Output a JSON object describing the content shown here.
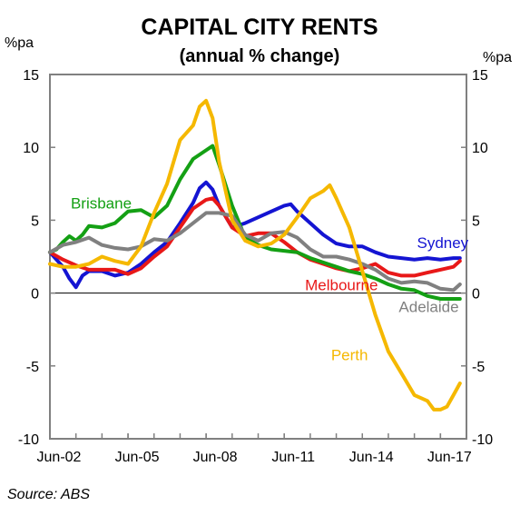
{
  "chart_data": {
    "type": "line",
    "title": "CAPITAL CITY RENTS",
    "subtitle": "(annual % change)",
    "ylabel_left": "%pa",
    "ylabel_right": "%pa",
    "source": "Source: ABS",
    "ylim": [
      -10,
      15
    ],
    "yticks": [
      "15",
      "10",
      "5",
      "0",
      "-5",
      "-10"
    ],
    "xlim": [
      2002.5,
      2018.5
    ],
    "xticks": [
      {
        "label": "Jun-02",
        "x": 2002.5
      },
      {
        "label": "Jun-05",
        "x": 2005.5
      },
      {
        "label": "Jun-08",
        "x": 2008.5
      },
      {
        "label": "Jun-11",
        "x": 2011.5
      },
      {
        "label": "Jun-14",
        "x": 2014.5
      },
      {
        "label": "Jun-17",
        "x": 2017.5
      }
    ],
    "grid": false,
    "series": [
      {
        "name": "Sydney",
        "color": "#1414d2",
        "label_pos": [
          2016.6,
          3.1
        ],
        "points": [
          [
            2002.5,
            2.8
          ],
          [
            2003.0,
            1.8
          ],
          [
            2003.25,
            1.0
          ],
          [
            2003.5,
            0.4
          ],
          [
            2003.75,
            1.2
          ],
          [
            2004.0,
            1.5
          ],
          [
            2004.5,
            1.5
          ],
          [
            2005.0,
            1.2
          ],
          [
            2005.5,
            1.4
          ],
          [
            2006.0,
            2.0
          ],
          [
            2006.5,
            2.8
          ],
          [
            2007.0,
            3.5
          ],
          [
            2007.5,
            4.8
          ],
          [
            2008.0,
            6.2
          ],
          [
            2008.25,
            7.2
          ],
          [
            2008.5,
            7.6
          ],
          [
            2008.75,
            7.1
          ],
          [
            2009.0,
            6.0
          ],
          [
            2009.5,
            4.5
          ],
          [
            2010.0,
            4.8
          ],
          [
            2010.5,
            5.2
          ],
          [
            2011.0,
            5.6
          ],
          [
            2011.5,
            6.0
          ],
          [
            2011.75,
            6.1
          ],
          [
            2012.0,
            5.6
          ],
          [
            2012.5,
            4.8
          ],
          [
            2013.0,
            4.0
          ],
          [
            2013.5,
            3.4
          ],
          [
            2014.0,
            3.2
          ],
          [
            2014.5,
            3.2
          ],
          [
            2015.0,
            2.8
          ],
          [
            2015.5,
            2.5
          ],
          [
            2016.0,
            2.4
          ],
          [
            2016.5,
            2.3
          ],
          [
            2017.0,
            2.4
          ],
          [
            2017.5,
            2.3
          ],
          [
            2018.0,
            2.4
          ],
          [
            2018.25,
            2.4
          ]
        ]
      },
      {
        "name": "Melbourne",
        "color": "#e81818",
        "label_pos": [
          2012.3,
          0.2
        ],
        "points": [
          [
            2002.5,
            2.8
          ],
          [
            2003.0,
            2.3
          ],
          [
            2003.5,
            1.9
          ],
          [
            2004.0,
            1.6
          ],
          [
            2004.5,
            1.6
          ],
          [
            2005.0,
            1.6
          ],
          [
            2005.5,
            1.3
          ],
          [
            2006.0,
            1.7
          ],
          [
            2006.5,
            2.5
          ],
          [
            2007.0,
            3.2
          ],
          [
            2007.5,
            4.5
          ],
          [
            2008.0,
            5.8
          ],
          [
            2008.5,
            6.4
          ],
          [
            2008.75,
            6.5
          ],
          [
            2009.0,
            6.0
          ],
          [
            2009.5,
            4.5
          ],
          [
            2010.0,
            3.9
          ],
          [
            2010.5,
            4.1
          ],
          [
            2011.0,
            4.1
          ],
          [
            2011.5,
            3.5
          ],
          [
            2012.0,
            2.8
          ],
          [
            2012.5,
            2.3
          ],
          [
            2013.0,
            2.0
          ],
          [
            2013.5,
            1.7
          ],
          [
            2014.0,
            1.5
          ],
          [
            2014.5,
            1.7
          ],
          [
            2015.0,
            2.0
          ],
          [
            2015.5,
            1.4
          ],
          [
            2016.0,
            1.2
          ],
          [
            2016.5,
            1.2
          ],
          [
            2017.0,
            1.4
          ],
          [
            2017.5,
            1.6
          ],
          [
            2018.0,
            1.8
          ],
          [
            2018.25,
            2.2
          ]
        ]
      },
      {
        "name": "Brisbane",
        "color": "#14a014",
        "label_pos": [
          2003.3,
          5.8
        ],
        "points": [
          [
            2002.5,
            2.8
          ],
          [
            2002.75,
            3.0
          ],
          [
            2003.0,
            3.5
          ],
          [
            2003.25,
            3.9
          ],
          [
            2003.5,
            3.6
          ],
          [
            2003.75,
            4.0
          ],
          [
            2004.0,
            4.6
          ],
          [
            2004.5,
            4.5
          ],
          [
            2005.0,
            4.8
          ],
          [
            2005.5,
            5.6
          ],
          [
            2006.0,
            5.7
          ],
          [
            2006.5,
            5.2
          ],
          [
            2007.0,
            6.0
          ],
          [
            2007.5,
            7.8
          ],
          [
            2008.0,
            9.2
          ],
          [
            2008.5,
            9.8
          ],
          [
            2008.75,
            10.1
          ],
          [
            2009.0,
            8.8
          ],
          [
            2009.5,
            6.0
          ],
          [
            2010.0,
            3.8
          ],
          [
            2010.5,
            3.3
          ],
          [
            2011.0,
            3.0
          ],
          [
            2011.5,
            2.9
          ],
          [
            2012.0,
            2.8
          ],
          [
            2012.5,
            2.4
          ],
          [
            2013.0,
            2.1
          ],
          [
            2013.5,
            1.8
          ],
          [
            2014.0,
            1.5
          ],
          [
            2014.5,
            1.3
          ],
          [
            2015.0,
            1.0
          ],
          [
            2015.5,
            0.6
          ],
          [
            2016.0,
            0.3
          ],
          [
            2016.5,
            0.2
          ],
          [
            2017.0,
            -0.2
          ],
          [
            2017.5,
            -0.4
          ],
          [
            2018.0,
            -0.4
          ],
          [
            2018.25,
            -0.4
          ]
        ]
      },
      {
        "name": "Adelaide",
        "color": "#808080",
        "label_pos": [
          2015.9,
          -1.3
        ],
        "points": [
          [
            2002.5,
            2.8
          ],
          [
            2003.0,
            3.3
          ],
          [
            2003.5,
            3.5
          ],
          [
            2004.0,
            3.8
          ],
          [
            2004.5,
            3.3
          ],
          [
            2005.0,
            3.1
          ],
          [
            2005.5,
            3.0
          ],
          [
            2006.0,
            3.2
          ],
          [
            2006.5,
            3.7
          ],
          [
            2007.0,
            3.6
          ],
          [
            2007.5,
            4.1
          ],
          [
            2008.0,
            4.8
          ],
          [
            2008.5,
            5.5
          ],
          [
            2009.0,
            5.5
          ],
          [
            2009.5,
            5.3
          ],
          [
            2010.0,
            4.0
          ],
          [
            2010.5,
            3.6
          ],
          [
            2011.0,
            4.1
          ],
          [
            2011.5,
            4.2
          ],
          [
            2012.0,
            3.8
          ],
          [
            2012.5,
            3.0
          ],
          [
            2013.0,
            2.5
          ],
          [
            2013.5,
            2.5
          ],
          [
            2014.0,
            2.3
          ],
          [
            2014.5,
            2.0
          ],
          [
            2015.0,
            1.6
          ],
          [
            2015.5,
            1.0
          ],
          [
            2016.0,
            0.7
          ],
          [
            2016.5,
            0.8
          ],
          [
            2017.0,
            0.7
          ],
          [
            2017.5,
            0.3
          ],
          [
            2018.0,
            0.2
          ],
          [
            2018.25,
            0.6
          ]
        ]
      },
      {
        "name": "Perth",
        "color": "#f5b800",
        "label_pos": [
          2013.3,
          -4.6
        ],
        "points": [
          [
            2002.5,
            2.0
          ],
          [
            2003.0,
            1.8
          ],
          [
            2003.5,
            1.8
          ],
          [
            2004.0,
            2.0
          ],
          [
            2004.5,
            2.5
          ],
          [
            2005.0,
            2.2
          ],
          [
            2005.5,
            2.0
          ],
          [
            2006.0,
            3.2
          ],
          [
            2006.5,
            5.5
          ],
          [
            2007.0,
            7.5
          ],
          [
            2007.5,
            10.5
          ],
          [
            2008.0,
            11.5
          ],
          [
            2008.25,
            12.8
          ],
          [
            2008.5,
            13.2
          ],
          [
            2008.75,
            12.0
          ],
          [
            2009.0,
            9.0
          ],
          [
            2009.5,
            5.0
          ],
          [
            2010.0,
            3.6
          ],
          [
            2010.5,
            3.2
          ],
          [
            2011.0,
            3.4
          ],
          [
            2011.5,
            4.0
          ],
          [
            2012.0,
            5.2
          ],
          [
            2012.5,
            6.5
          ],
          [
            2013.0,
            7.0
          ],
          [
            2013.25,
            7.4
          ],
          [
            2013.5,
            6.5
          ],
          [
            2014.0,
            4.5
          ],
          [
            2014.5,
            1.5
          ],
          [
            2015.0,
            -1.5
          ],
          [
            2015.5,
            -4.0
          ],
          [
            2016.0,
            -5.5
          ],
          [
            2016.5,
            -7.0
          ],
          [
            2017.0,
            -7.4
          ],
          [
            2017.25,
            -8.0
          ],
          [
            2017.5,
            -8.0
          ],
          [
            2017.75,
            -7.8
          ],
          [
            2018.0,
            -7.0
          ],
          [
            2018.25,
            -6.2
          ]
        ]
      }
    ]
  }
}
